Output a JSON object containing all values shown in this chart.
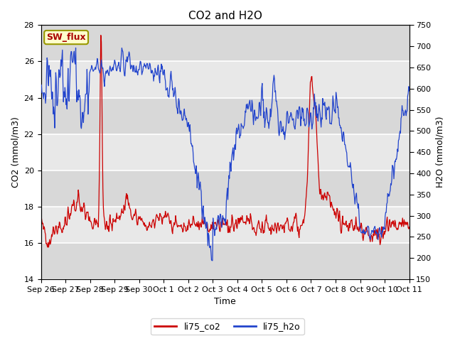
{
  "title": "CO2 and H2O",
  "xlabel": "Time",
  "ylabel_left": "CO2 (mmol/m3)",
  "ylabel_right": "H2O (mmol/m3)",
  "ylim_left": [
    14,
    28
  ],
  "ylim_right": [
    150,
    750
  ],
  "yticks_left": [
    14,
    16,
    18,
    20,
    22,
    24,
    26,
    28
  ],
  "yticks_right": [
    150,
    200,
    250,
    300,
    350,
    400,
    450,
    500,
    550,
    600,
    650,
    700,
    750
  ],
  "xtick_labels": [
    "Sep 26",
    "Sep 27",
    "Sep 28",
    "Sep 29",
    "Sep 30",
    "Oct 1",
    "Oct 2",
    "Oct 3",
    "Oct 4",
    "Oct 5",
    "Oct 6",
    "Oct 7",
    "Oct 8",
    "Oct 9",
    "Oct 10",
    "Oct 11"
  ],
  "color_co2": "#cc0000",
  "color_h2o": "#2244cc",
  "legend_label_co2": "li75_co2",
  "legend_label_h2o": "li75_h2o",
  "sw_flux_box_facecolor": "#ffffcc",
  "sw_flux_box_edgecolor": "#999900",
  "sw_flux_text_color": "#aa0000",
  "plot_bg_color": "#e8e8e8",
  "grid_color": "#ffffff",
  "band_color_dark": "#d8d8d8",
  "band_color_light": "#e8e8e8",
  "title_fontsize": 11,
  "axis_label_fontsize": 9,
  "tick_fontsize": 8
}
